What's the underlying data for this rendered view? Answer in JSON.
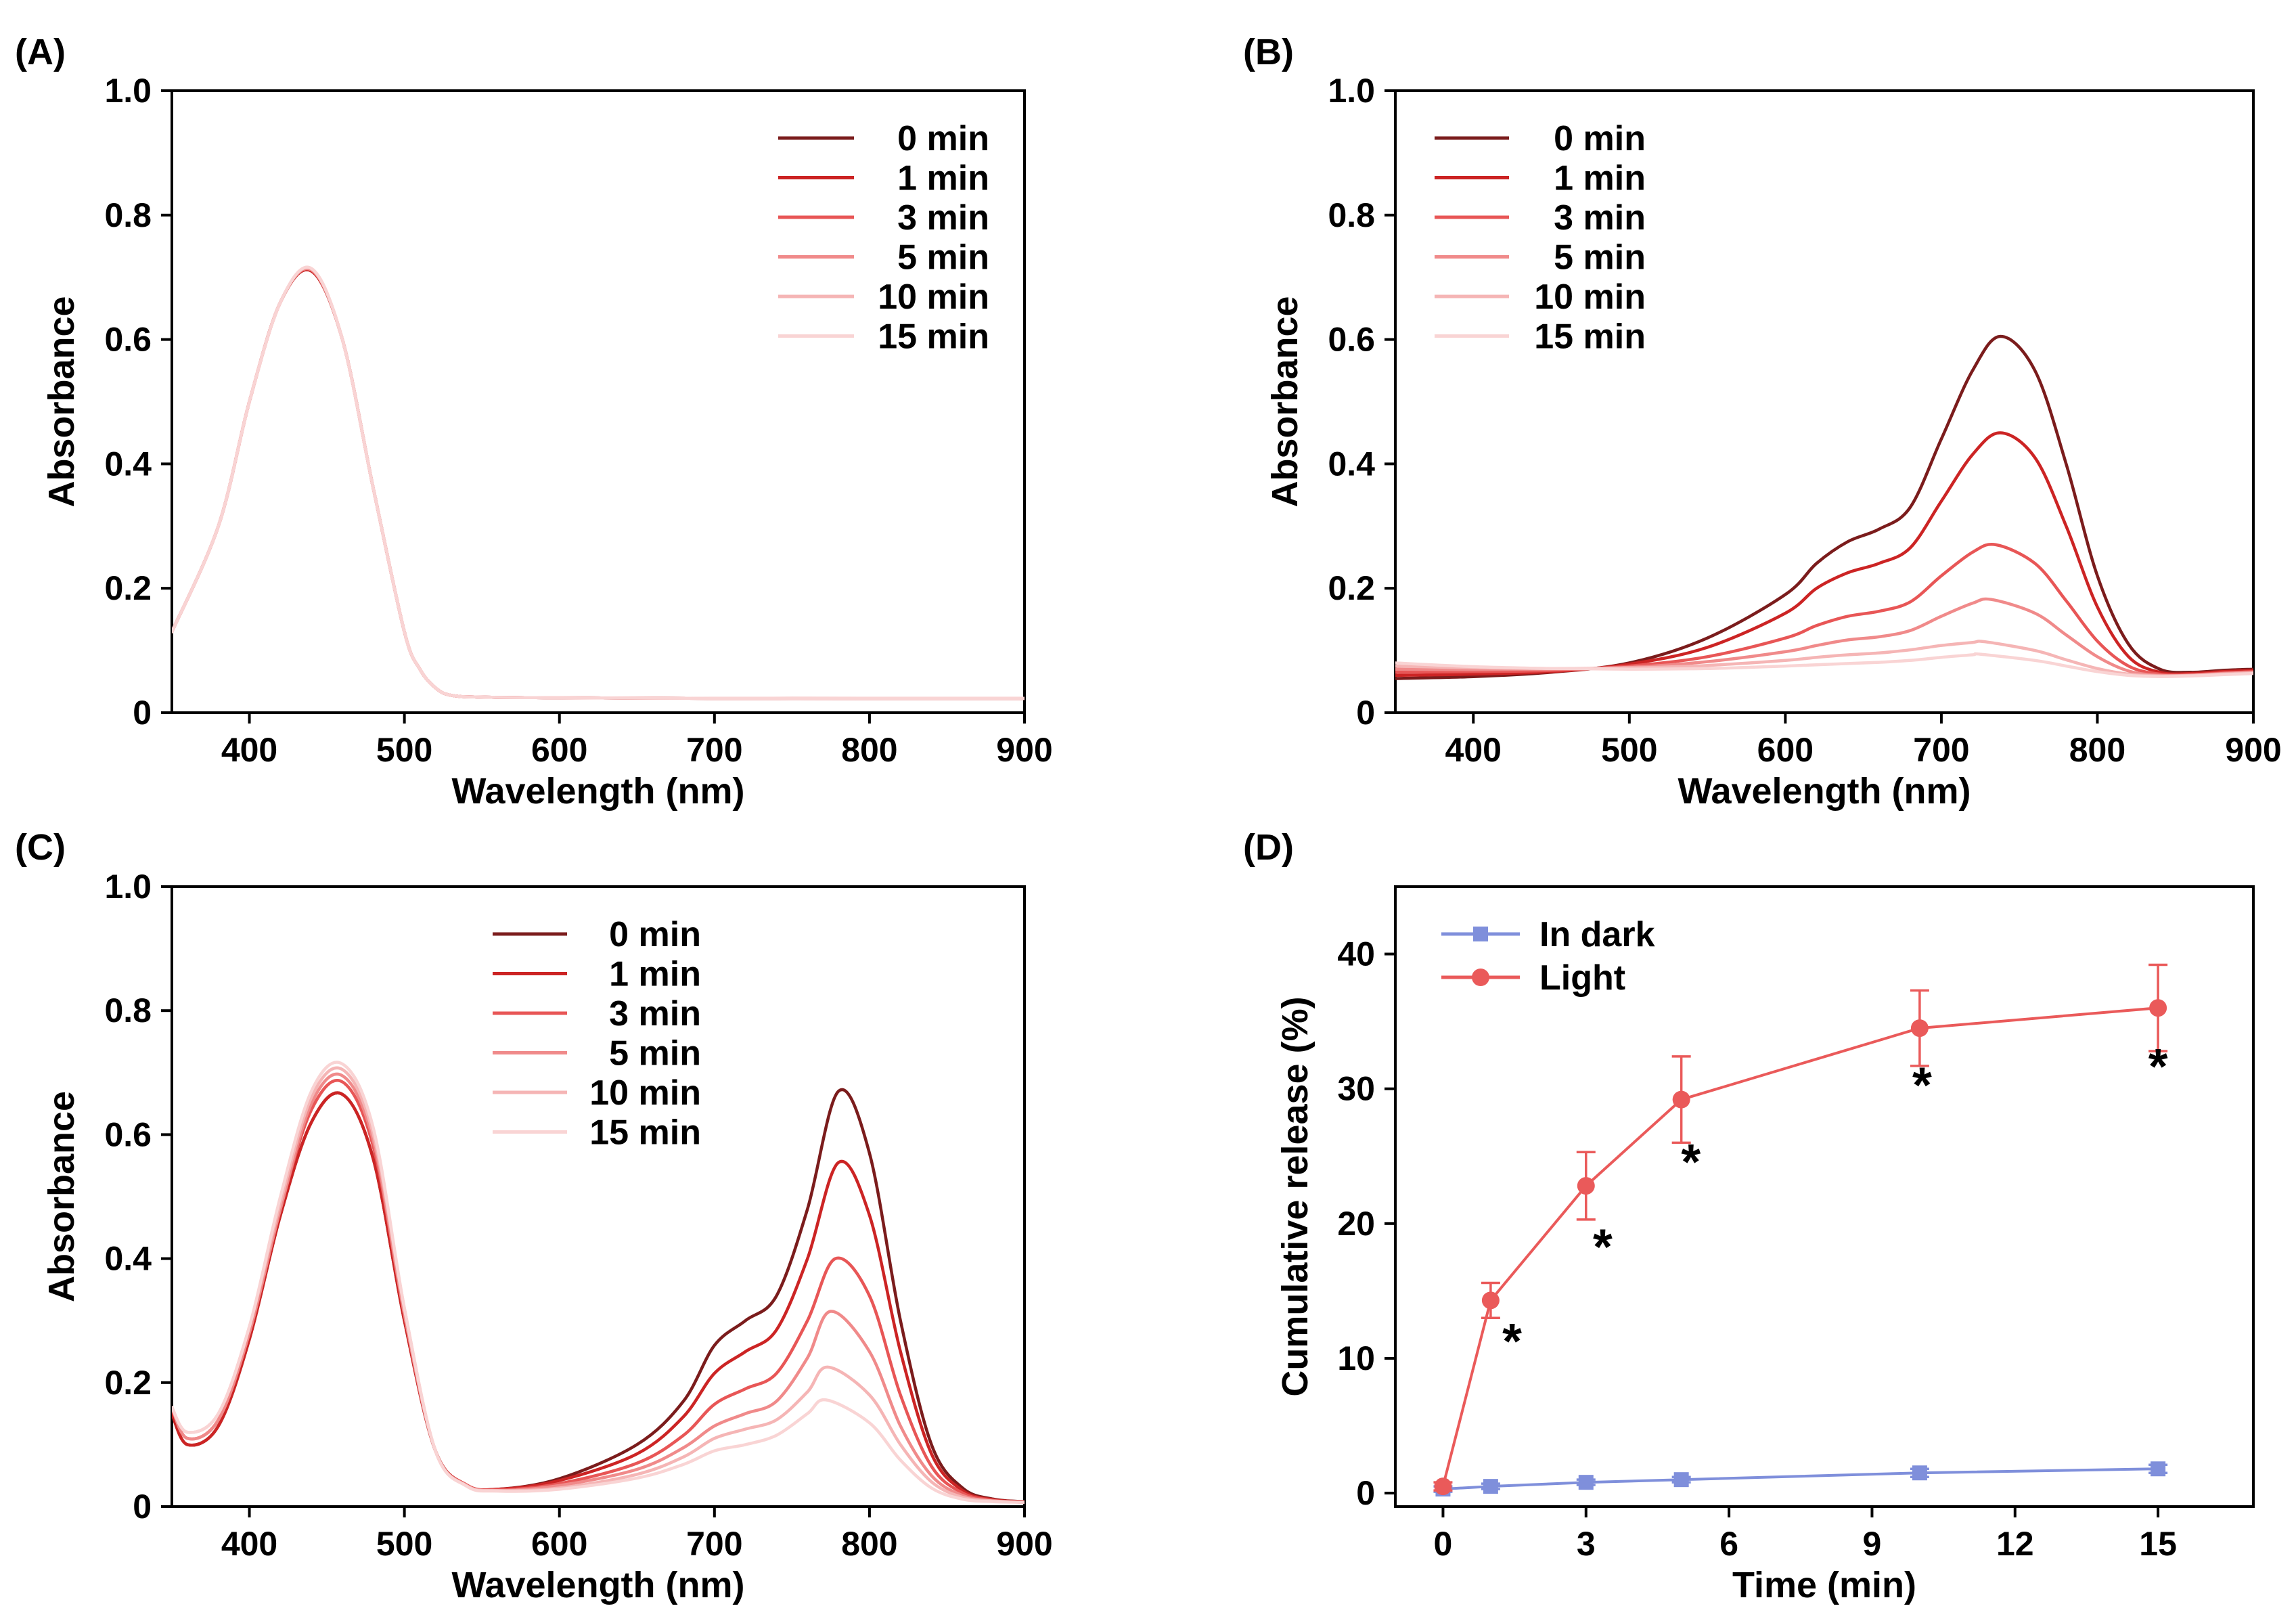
{
  "colors": {
    "axis": "#000000",
    "series": [
      "#7b1c1c",
      "#cc2424",
      "#e85656",
      "#f08a8a",
      "#f5b5b5",
      "#f9d4d4"
    ],
    "dark": "#7f8fdb",
    "light": "#ea5a5a"
  },
  "chart_data": [
    {
      "panel": "(A)",
      "type": "line",
      "xlabel": "Wavelength (nm)",
      "ylabel": "Absorbance",
      "xlim": [
        350,
        900
      ],
      "ylim": [
        0,
        1.0
      ],
      "x_ticks": [
        400,
        500,
        600,
        700,
        800,
        900
      ],
      "x_tick_labels": [
        "400",
        "500",
        "600",
        "700",
        "800",
        "900"
      ],
      "y_ticks": [
        0,
        0.2,
        0.4,
        0.6,
        0.8,
        1.0
      ],
      "y_tick_labels": [
        "0",
        "0.2",
        "0.4",
        "0.6",
        "0.8",
        "1.0"
      ],
      "legend": "top-right",
      "grid": false,
      "series": [
        {
          "name": "0 min",
          "x": [
            350,
            380,
            400,
            420,
            440,
            460,
            480,
            500,
            510,
            520,
            530,
            550,
            600,
            700,
            800,
            900
          ],
          "y": [
            0.13,
            0.3,
            0.5,
            0.66,
            0.71,
            0.6,
            0.36,
            0.13,
            0.07,
            0.04,
            0.028,
            0.025,
            0.024,
            0.023,
            0.023,
            0.023
          ]
        },
        {
          "name": "1 min",
          "x": [
            350,
            380,
            400,
            420,
            440,
            460,
            480,
            500,
            510,
            520,
            530,
            550,
            600,
            700,
            800,
            900
          ],
          "y": [
            0.13,
            0.3,
            0.5,
            0.66,
            0.71,
            0.6,
            0.36,
            0.13,
            0.07,
            0.04,
            0.028,
            0.025,
            0.024,
            0.023,
            0.023,
            0.023
          ]
        },
        {
          "name": "3 min",
          "x": [
            350,
            380,
            400,
            420,
            440,
            460,
            480,
            500,
            510,
            520,
            530,
            550,
            600,
            700,
            800,
            900
          ],
          "y": [
            0.13,
            0.3,
            0.5,
            0.66,
            0.712,
            0.6,
            0.36,
            0.13,
            0.07,
            0.04,
            0.028,
            0.025,
            0.024,
            0.023,
            0.023,
            0.023
          ]
        },
        {
          "name": "5 min",
          "x": [
            350,
            380,
            400,
            420,
            440,
            460,
            480,
            500,
            510,
            520,
            530,
            550,
            600,
            700,
            800,
            900
          ],
          "y": [
            0.13,
            0.3,
            0.5,
            0.66,
            0.712,
            0.6,
            0.36,
            0.13,
            0.07,
            0.04,
            0.028,
            0.025,
            0.024,
            0.023,
            0.023,
            0.023
          ]
        },
        {
          "name": "10 min",
          "x": [
            350,
            380,
            400,
            420,
            440,
            460,
            480,
            500,
            510,
            520,
            530,
            550,
            600,
            700,
            800,
            900
          ],
          "y": [
            0.13,
            0.3,
            0.5,
            0.66,
            0.714,
            0.6,
            0.36,
            0.13,
            0.07,
            0.04,
            0.028,
            0.025,
            0.024,
            0.023,
            0.023,
            0.023
          ]
        },
        {
          "name": "15 min",
          "x": [
            350,
            380,
            400,
            420,
            440,
            460,
            480,
            500,
            510,
            520,
            530,
            550,
            600,
            700,
            800,
            900
          ],
          "y": [
            0.13,
            0.3,
            0.5,
            0.66,
            0.714,
            0.6,
            0.36,
            0.13,
            0.07,
            0.04,
            0.028,
            0.025,
            0.024,
            0.023,
            0.023,
            0.023
          ]
        }
      ]
    },
    {
      "panel": "(B)",
      "type": "line",
      "xlabel": "Wavelength (nm)",
      "ylabel": "Absorbance",
      "xlim": [
        350,
        900
      ],
      "ylim": [
        0,
        1.0
      ],
      "x_ticks": [
        400,
        500,
        600,
        700,
        800,
        900
      ],
      "x_tick_labels": [
        "400",
        "500",
        "600",
        "700",
        "800",
        "900"
      ],
      "y_ticks": [
        0,
        0.2,
        0.4,
        0.6,
        0.8,
        1.0
      ],
      "y_tick_labels": [
        "0",
        "0.2",
        "0.4",
        "0.6",
        "0.8",
        "1.0"
      ],
      "legend": "top-left",
      "grid": false,
      "series": [
        {
          "name": "0 min",
          "x": [
            350,
            400,
            450,
            500,
            550,
            600,
            620,
            640,
            660,
            680,
            700,
            720,
            738,
            760,
            780,
            800,
            820,
            840,
            860,
            880,
            900
          ],
          "y": [
            0.055,
            0.058,
            0.065,
            0.08,
            0.12,
            0.19,
            0.24,
            0.275,
            0.295,
            0.33,
            0.44,
            0.55,
            0.605,
            0.55,
            0.4,
            0.22,
            0.11,
            0.07,
            0.065,
            0.068,
            0.07
          ]
        },
        {
          "name": "1 min",
          "x": [
            350,
            400,
            450,
            500,
            550,
            600,
            620,
            640,
            660,
            680,
            700,
            720,
            738,
            760,
            780,
            800,
            820,
            840,
            860,
            880,
            900
          ],
          "y": [
            0.06,
            0.062,
            0.066,
            0.078,
            0.105,
            0.16,
            0.2,
            0.225,
            0.24,
            0.265,
            0.34,
            0.415,
            0.45,
            0.41,
            0.3,
            0.17,
            0.09,
            0.065,
            0.063,
            0.066,
            0.068
          ]
        },
        {
          "name": "3 min",
          "x": [
            350,
            400,
            450,
            500,
            550,
            600,
            620,
            640,
            660,
            680,
            700,
            720,
            735,
            760,
            780,
            800,
            820,
            840,
            860,
            880,
            900
          ],
          "y": [
            0.065,
            0.066,
            0.068,
            0.075,
            0.09,
            0.12,
            0.14,
            0.155,
            0.163,
            0.178,
            0.22,
            0.258,
            0.27,
            0.24,
            0.18,
            0.115,
            0.075,
            0.062,
            0.061,
            0.064,
            0.066
          ]
        },
        {
          "name": "5 min",
          "x": [
            350,
            400,
            450,
            500,
            550,
            600,
            620,
            640,
            660,
            680,
            700,
            720,
            732,
            760,
            780,
            800,
            820,
            840,
            860,
            880,
            900
          ],
          "y": [
            0.07,
            0.069,
            0.07,
            0.073,
            0.082,
            0.098,
            0.108,
            0.117,
            0.122,
            0.132,
            0.155,
            0.176,
            0.182,
            0.16,
            0.125,
            0.09,
            0.067,
            0.06,
            0.06,
            0.063,
            0.065
          ]
        },
        {
          "name": "10 min",
          "x": [
            350,
            400,
            450,
            500,
            550,
            600,
            620,
            640,
            660,
            680,
            700,
            720,
            728,
            760,
            780,
            800,
            820,
            840,
            860,
            880,
            900
          ],
          "y": [
            0.075,
            0.072,
            0.071,
            0.072,
            0.076,
            0.084,
            0.089,
            0.093,
            0.096,
            0.101,
            0.108,
            0.113,
            0.114,
            0.1,
            0.085,
            0.071,
            0.062,
            0.059,
            0.06,
            0.062,
            0.064
          ]
        },
        {
          "name": "15 min",
          "x": [
            350,
            400,
            450,
            500,
            550,
            600,
            620,
            640,
            660,
            680,
            700,
            720,
            725,
            760,
            780,
            800,
            820,
            840,
            860,
            880,
            900
          ],
          "y": [
            0.08,
            0.074,
            0.071,
            0.07,
            0.071,
            0.075,
            0.077,
            0.079,
            0.081,
            0.084,
            0.089,
            0.093,
            0.094,
            0.084,
            0.075,
            0.066,
            0.06,
            0.058,
            0.059,
            0.061,
            0.063
          ]
        }
      ]
    },
    {
      "panel": "(C)",
      "type": "line",
      "xlabel": "Wavelength (nm)",
      "ylabel": "Absorbance",
      "xlim": [
        350,
        900
      ],
      "ylim": [
        0,
        1.0
      ],
      "x_ticks": [
        400,
        500,
        600,
        700,
        800,
        900
      ],
      "x_tick_labels": [
        "400",
        "500",
        "600",
        "700",
        "800",
        "900"
      ],
      "y_ticks": [
        0,
        0.2,
        0.4,
        0.6,
        0.8,
        1.0
      ],
      "y_tick_labels": [
        "0",
        "0.2",
        "0.4",
        "0.6",
        "0.8",
        "1.0"
      ],
      "legend": "top-center",
      "grid": false,
      "series": [
        {
          "name": "0 min",
          "x": [
            350,
            360,
            380,
            400,
            420,
            440,
            460,
            480,
            500,
            520,
            540,
            560,
            600,
            650,
            680,
            700,
            720,
            740,
            760,
            780,
            800,
            820,
            840,
            860,
            880,
            900
          ],
          "y": [
            0.15,
            0.1,
            0.13,
            0.27,
            0.47,
            0.62,
            0.665,
            0.56,
            0.3,
            0.09,
            0.035,
            0.028,
            0.045,
            0.1,
            0.17,
            0.26,
            0.3,
            0.34,
            0.48,
            0.67,
            0.57,
            0.3,
            0.1,
            0.03,
            0.012,
            0.008
          ]
        },
        {
          "name": "1 min",
          "x": [
            350,
            360,
            380,
            400,
            420,
            440,
            460,
            480,
            500,
            520,
            540,
            560,
            600,
            650,
            680,
            700,
            720,
            740,
            760,
            780,
            800,
            820,
            840,
            860,
            880,
            900
          ],
          "y": [
            0.15,
            0.1,
            0.13,
            0.27,
            0.47,
            0.62,
            0.665,
            0.56,
            0.3,
            0.09,
            0.035,
            0.028,
            0.042,
            0.085,
            0.145,
            0.215,
            0.25,
            0.285,
            0.4,
            0.555,
            0.47,
            0.25,
            0.085,
            0.026,
            0.011,
            0.008
          ]
        },
        {
          "name": "3 min",
          "x": [
            350,
            360,
            380,
            400,
            420,
            440,
            460,
            480,
            500,
            520,
            540,
            560,
            600,
            650,
            680,
            700,
            720,
            740,
            760,
            778,
            800,
            820,
            840,
            860,
            880,
            900
          ],
          "y": [
            0.16,
            0.11,
            0.14,
            0.28,
            0.48,
            0.64,
            0.685,
            0.58,
            0.31,
            0.09,
            0.035,
            0.027,
            0.037,
            0.07,
            0.115,
            0.165,
            0.19,
            0.215,
            0.3,
            0.4,
            0.34,
            0.18,
            0.065,
            0.022,
            0.01,
            0.007
          ]
        },
        {
          "name": "5 min",
          "x": [
            350,
            360,
            380,
            400,
            420,
            440,
            460,
            480,
            500,
            520,
            540,
            560,
            600,
            650,
            680,
            700,
            720,
            740,
            760,
            775,
            800,
            820,
            840,
            860,
            880,
            900
          ],
          "y": [
            0.16,
            0.11,
            0.14,
            0.28,
            0.48,
            0.65,
            0.695,
            0.59,
            0.31,
            0.09,
            0.034,
            0.026,
            0.034,
            0.06,
            0.095,
            0.13,
            0.15,
            0.17,
            0.24,
            0.315,
            0.25,
            0.13,
            0.05,
            0.018,
            0.009,
            0.007
          ]
        },
        {
          "name": "10 min",
          "x": [
            350,
            360,
            380,
            400,
            420,
            440,
            460,
            480,
            500,
            520,
            540,
            560,
            600,
            650,
            680,
            700,
            720,
            740,
            760,
            773,
            800,
            820,
            840,
            860,
            880,
            900
          ],
          "y": [
            0.16,
            0.12,
            0.15,
            0.29,
            0.49,
            0.66,
            0.705,
            0.6,
            0.32,
            0.09,
            0.034,
            0.026,
            0.03,
            0.052,
            0.08,
            0.11,
            0.125,
            0.14,
            0.185,
            0.225,
            0.18,
            0.1,
            0.04,
            0.015,
            0.009,
            0.007
          ]
        },
        {
          "name": "15 min",
          "x": [
            350,
            360,
            380,
            400,
            420,
            440,
            460,
            480,
            500,
            520,
            540,
            560,
            600,
            650,
            680,
            700,
            720,
            740,
            760,
            772,
            800,
            820,
            840,
            860,
            880,
            900
          ],
          "y": [
            0.16,
            0.12,
            0.15,
            0.29,
            0.5,
            0.67,
            0.714,
            0.61,
            0.32,
            0.09,
            0.033,
            0.025,
            0.028,
            0.046,
            0.068,
            0.09,
            0.1,
            0.115,
            0.15,
            0.172,
            0.135,
            0.075,
            0.03,
            0.012,
            0.008,
            0.007
          ]
        }
      ]
    },
    {
      "panel": "(D)",
      "type": "line",
      "xlabel": "Time (min)",
      "ylabel": "Cumulative release (%)",
      "xlim": [
        -1,
        17
      ],
      "ylim": [
        -1,
        45
      ],
      "x_ticks": [
        0,
        3,
        6,
        9,
        12,
        15
      ],
      "x_tick_labels": [
        "0",
        "3",
        "6",
        "9",
        "12",
        "15"
      ],
      "y_ticks": [
        0,
        10,
        20,
        30,
        40
      ],
      "y_tick_labels": [
        "0",
        "10",
        "20",
        "30",
        "40"
      ],
      "legend": "top-left",
      "grid": false,
      "series": [
        {
          "name": "In dark",
          "marker": "square",
          "x": [
            0,
            1,
            3,
            5,
            10,
            15
          ],
          "y": [
            0.3,
            0.5,
            0.8,
            1.0,
            1.5,
            1.8
          ],
          "err": [
            0.2,
            0.2,
            0.2,
            0.2,
            0.3,
            0.3
          ]
        },
        {
          "name": "Light",
          "marker": "circle",
          "x": [
            0,
            1,
            3,
            5,
            10,
            15
          ],
          "y": [
            0.5,
            14.3,
            22.8,
            29.2,
            34.5,
            36.0
          ],
          "err": [
            0.3,
            1.3,
            2.5,
            3.2,
            2.8,
            3.2
          ]
        }
      ],
      "annotations": [
        {
          "text": "*",
          "x": 1.45,
          "y": 11.5
        },
        {
          "text": "*",
          "x": 3.35,
          "y": 18.5
        },
        {
          "text": "*",
          "x": 5.2,
          "y": 24.8
        },
        {
          "text": "*",
          "x": 10.05,
          "y": 30.5
        },
        {
          "text": "*",
          "x": 15.0,
          "y": 31.9
        }
      ]
    }
  ]
}
